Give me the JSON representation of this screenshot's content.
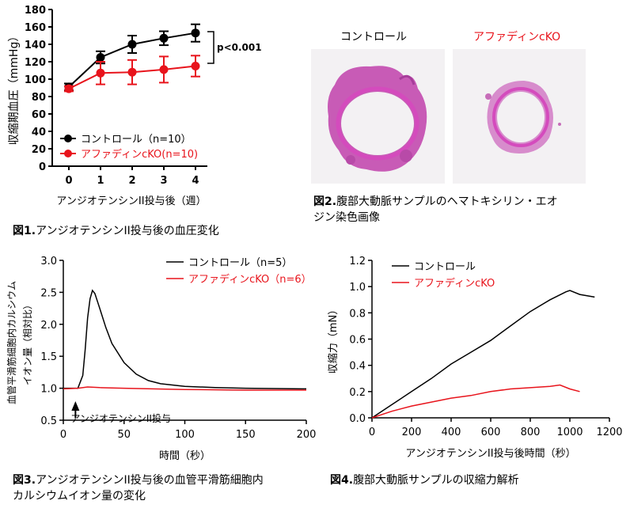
{
  "figure1": {
    "caption_num": "図1.",
    "caption_text": "アンジオテンシンII投与後の血圧変化",
    "chart_data": {
      "type": "line",
      "ylabel": "収縮期血圧（mmHg）",
      "xlabel": "アンジオテンシンII投与後（週）",
      "x": [
        0,
        1,
        2,
        3,
        4
      ],
      "ylim": [
        0,
        180
      ],
      "yticks": [
        0,
        20,
        40,
        60,
        80,
        100,
        120,
        140,
        160,
        180
      ],
      "series": [
        {
          "name": "コントロール（n=10）",
          "color": "#000000",
          "values": [
            91,
            125,
            140,
            147,
            153
          ],
          "errors": [
            4,
            7,
            10,
            8,
            10
          ]
        },
        {
          "name": "アファディンcKO(n=10)",
          "color": "#e8141c",
          "values": [
            89,
            107,
            108,
            111,
            115
          ],
          "errors": [
            3,
            13,
            14,
            15,
            12
          ]
        }
      ],
      "annotation": "p<0.001"
    }
  },
  "figure2": {
    "caption_num": "図2.",
    "caption_line1": "腹部大動脈サンプルのヘマトキシリン・エオ",
    "caption_line2": "ジン染色画像",
    "label_control": "コントロール",
    "label_cko": "アファディンcKO"
  },
  "figure3": {
    "caption_num": "図3.",
    "caption_line1": "アンジオテンシンII投与後の血管平滑筋細胞内",
    "caption_line2": "カルシウムイオン量の変化",
    "chart_data": {
      "type": "line",
      "ylabel_line1": "血管平滑筋細胞内カルシウム",
      "ylabel_line2": "イオン量（相対比）",
      "xlabel": "時間（秒）",
      "xlim": [
        0,
        200
      ],
      "ylim": [
        0.5,
        3.0
      ],
      "xticks": [
        0,
        50,
        100,
        150,
        200
      ],
      "yticks": [
        "0.5",
        "1.0",
        "1.5",
        "2.0",
        "2.5",
        "3.0"
      ],
      "arrow_label": "アンジオテンシンII投与",
      "arrow_x": 10,
      "series": [
        {
          "name": "コントロール（n=5）",
          "color": "#000000",
          "points": [
            [
              0,
              1.0
            ],
            [
              12,
              1.0
            ],
            [
              16,
              1.2
            ],
            [
              18,
              1.6
            ],
            [
              20,
              2.1
            ],
            [
              22,
              2.4
            ],
            [
              24,
              2.53
            ],
            [
              26,
              2.48
            ],
            [
              30,
              2.25
            ],
            [
              35,
              1.95
            ],
            [
              40,
              1.7
            ],
            [
              50,
              1.4
            ],
            [
              60,
              1.22
            ],
            [
              70,
              1.12
            ],
            [
              80,
              1.07
            ],
            [
              100,
              1.03
            ],
            [
              125,
              1.01
            ],
            [
              150,
              1.0
            ],
            [
              200,
              0.99
            ]
          ]
        },
        {
          "name": "アファディンcKO（n=6）",
          "color": "#e8141c",
          "points": [
            [
              0,
              0.99
            ],
            [
              12,
              1.0
            ],
            [
              20,
              1.02
            ],
            [
              30,
              1.01
            ],
            [
              50,
              1.0
            ],
            [
              100,
              0.98
            ],
            [
              150,
              0.97
            ],
            [
              200,
              0.97
            ]
          ]
        }
      ]
    }
  },
  "figure4": {
    "caption_num": "図4.",
    "caption_text": "腹部大動脈サンプルの収縮力解析",
    "chart_data": {
      "type": "line",
      "ylabel": "収縮力（mN）",
      "xlabel": "アンジオテンシンII投与後時間（秒）",
      "xlim": [
        0,
        1200
      ],
      "ylim": [
        0,
        1.2
      ],
      "xticks": [
        0,
        200,
        400,
        600,
        800,
        1000,
        1200
      ],
      "yticks": [
        "0.0",
        "0.2",
        "0.4",
        "0.6",
        "0.8",
        "1.0",
        "1.2"
      ],
      "series": [
        {
          "name": "コントロール",
          "color": "#000000",
          "points": [
            [
              0,
              0.0
            ],
            [
              100,
              0.1
            ],
            [
              200,
              0.2
            ],
            [
              300,
              0.3
            ],
            [
              400,
              0.41
            ],
            [
              500,
              0.5
            ],
            [
              600,
              0.59
            ],
            [
              700,
              0.7
            ],
            [
              800,
              0.81
            ],
            [
              900,
              0.9
            ],
            [
              980,
              0.96
            ],
            [
              1000,
              0.97
            ],
            [
              1050,
              0.94
            ],
            [
              1125,
              0.92
            ]
          ]
        },
        {
          "name": "アファディンcKO",
          "color": "#e8141c",
          "points": [
            [
              0,
              0.0
            ],
            [
              100,
              0.05
            ],
            [
              200,
              0.09
            ],
            [
              300,
              0.12
            ],
            [
              400,
              0.15
            ],
            [
              500,
              0.17
            ],
            [
              600,
              0.2
            ],
            [
              700,
              0.22
            ],
            [
              800,
              0.23
            ],
            [
              900,
              0.24
            ],
            [
              950,
              0.25
            ],
            [
              1000,
              0.22
            ],
            [
              1050,
              0.2
            ]
          ]
        }
      ]
    }
  }
}
